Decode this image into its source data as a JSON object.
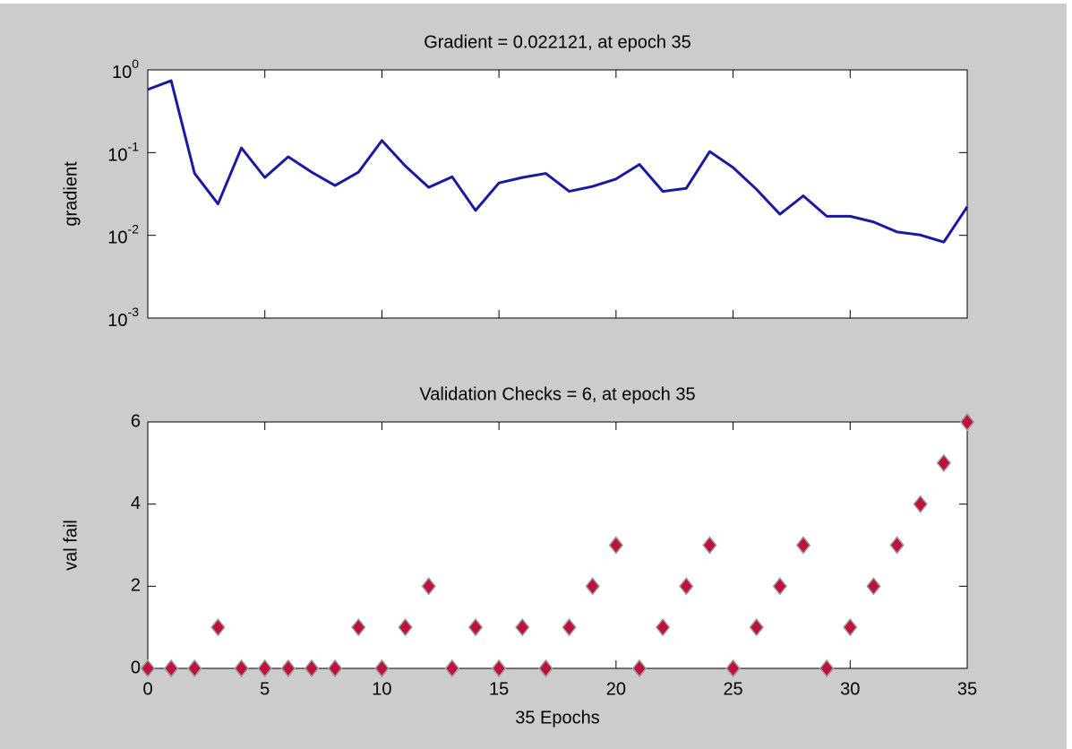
{
  "chart_data": [
    {
      "type": "line",
      "title": "Gradient = 0.022121, at epoch 35",
      "ylabel": "gradient",
      "log_y": true,
      "show_xtick_labels": false,
      "x": [
        0,
        1,
        2,
        3,
        4,
        5,
        6,
        7,
        8,
        9,
        10,
        11,
        12,
        13,
        14,
        15,
        16,
        17,
        18,
        19,
        20,
        21,
        22,
        23,
        24,
        25,
        26,
        27,
        28,
        29,
        30,
        31,
        32,
        33,
        34,
        35
      ],
      "values": [
        0.58,
        0.74,
        0.056,
        0.024,
        0.114,
        0.05,
        0.089,
        0.058,
        0.04,
        0.058,
        0.14,
        0.069,
        0.038,
        0.051,
        0.02,
        0.043,
        0.05,
        0.056,
        0.034,
        0.039,
        0.048,
        0.072,
        0.034,
        0.037,
        0.103,
        0.066,
        0.036,
        0.018,
        0.03,
        0.017,
        0.017,
        0.0145,
        0.011,
        0.0101,
        0.0083,
        0.022121
      ],
      "color": "#1a1aa0",
      "xlim": [
        0,
        35
      ],
      "xticks": [
        0,
        5,
        10,
        15,
        20,
        25,
        30,
        35
      ],
      "ylim": [
        0.001,
        1
      ],
      "yticks": [
        {
          "value": 0.001,
          "label": "10",
          "exponent": "-3"
        },
        {
          "value": 0.01,
          "label": "10",
          "exponent": "-2"
        },
        {
          "value": 0.1,
          "label": "10",
          "exponent": "-1"
        },
        {
          "value": 1,
          "label": "10",
          "exponent": "0"
        }
      ]
    },
    {
      "type": "scatter",
      "title": "Validation Checks = 6, at epoch 35",
      "ylabel": "val fail",
      "xlabel": "35 Epochs",
      "show_xtick_labels": true,
      "x": [
        0,
        1,
        2,
        3,
        4,
        5,
        6,
        7,
        8,
        9,
        10,
        11,
        12,
        13,
        14,
        15,
        16,
        17,
        18,
        19,
        20,
        21,
        22,
        23,
        24,
        25,
        26,
        27,
        28,
        29,
        30,
        31,
        32,
        33,
        34,
        35
      ],
      "values": [
        0,
        0,
        0,
        1,
        0,
        0,
        0,
        0,
        0,
        1,
        0,
        1,
        2,
        0,
        1,
        0,
        1,
        0,
        1,
        2,
        3,
        0,
        1,
        2,
        3,
        0,
        1,
        2,
        3,
        0,
        1,
        2,
        3,
        4,
        5,
        6
      ],
      "color": "#c0103c",
      "xlim": [
        0,
        35
      ],
      "xticks": [
        0,
        5,
        10,
        15,
        20,
        25,
        30,
        35
      ],
      "ylim": [
        0,
        6
      ],
      "yticks": [
        0,
        2,
        4,
        6
      ]
    }
  ]
}
